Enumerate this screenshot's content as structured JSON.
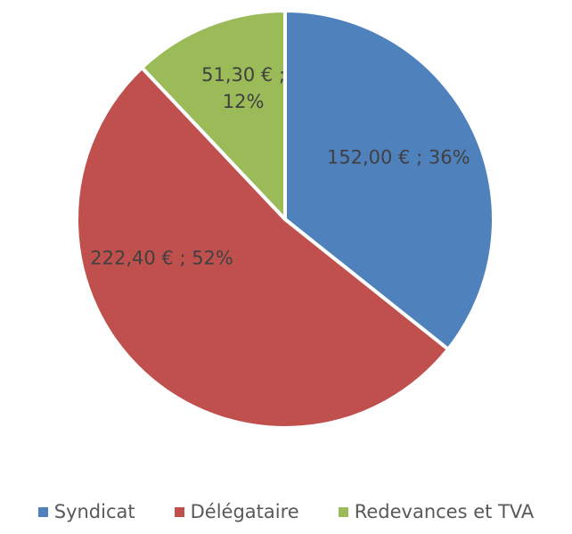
{
  "chart_data": {
    "type": "pie",
    "categories": [
      "Syndicat",
      "Délégataire",
      "Redevances et TVA"
    ],
    "values": [
      152.0,
      222.4,
      51.3
    ],
    "value_labels": [
      "152,00 € ; 36%",
      "222,40 € ; 52%",
      "51,30 € ; 12%"
    ],
    "label_lines": [
      [
        "152,00 € ; 36%"
      ],
      [
        "222,40 € ; 52%"
      ],
      [
        "51,30 € ;",
        "12%"
      ]
    ],
    "colors": [
      "#4f81bd",
      "#c0504d",
      "#9bbb59"
    ],
    "legend_position": "bottom",
    "start_angle_deg": 0,
    "direction": "clockwise"
  }
}
